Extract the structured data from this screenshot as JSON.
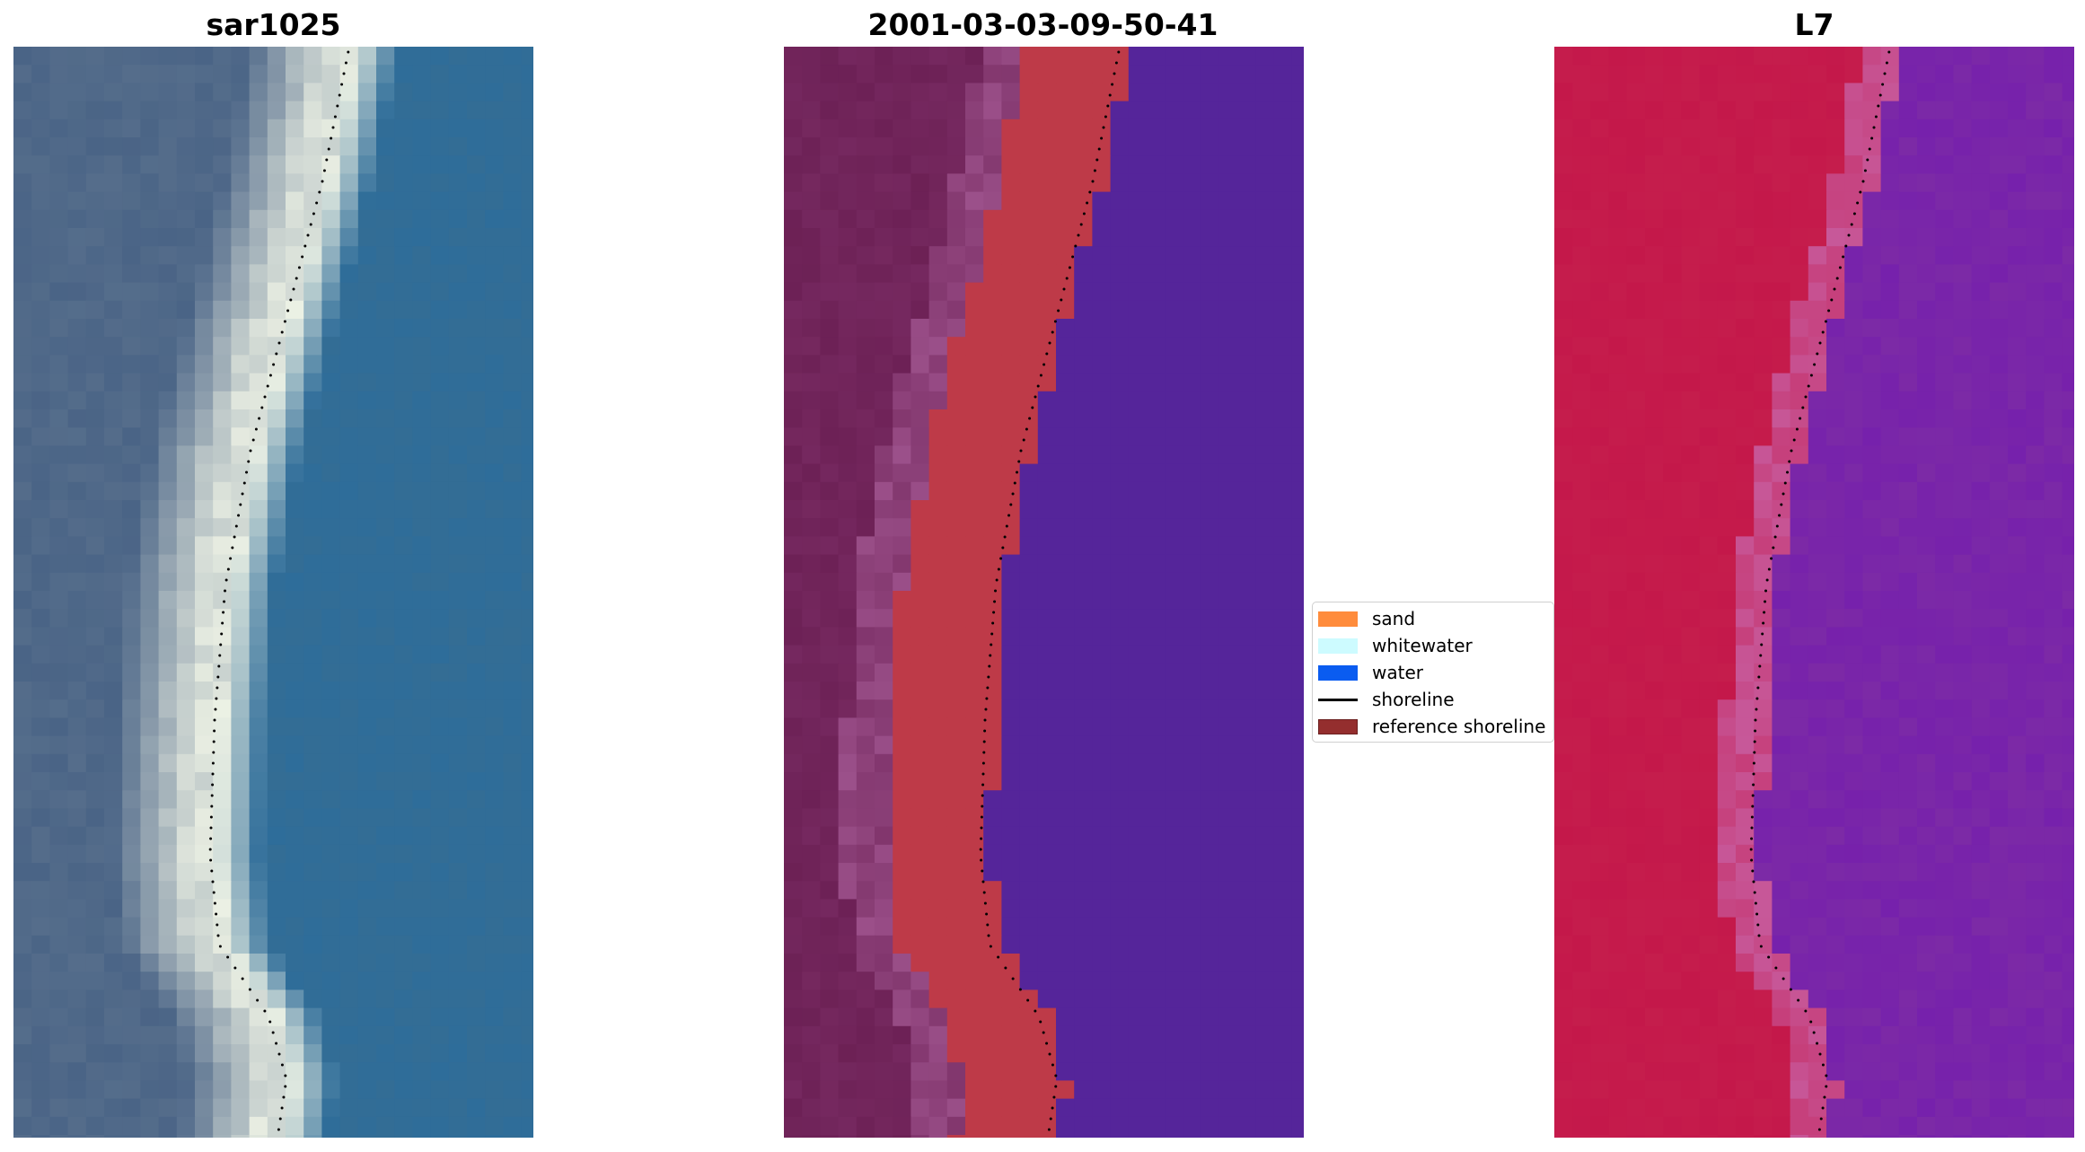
{
  "panels": [
    {
      "title": "sar1025",
      "base": "#2f6d99"
    },
    {
      "title": "2001-03-03-09-50-41",
      "base": "#55259a"
    },
    {
      "title": "L7",
      "base": "#7c2aa6"
    }
  ],
  "legend": {
    "items": [
      {
        "label": "sand",
        "color": "#ff8c3c",
        "kind": "patch"
      },
      {
        "label": "whitewater",
        "color": "#cdfbff",
        "kind": "patch"
      },
      {
        "label": "water",
        "color": "#0a5cf0",
        "kind": "patch"
      },
      {
        "label": "shoreline",
        "color": "#000000",
        "kind": "line"
      },
      {
        "label": "reference shoreline",
        "color": "#942e2e",
        "kind": "patch"
      }
    ]
  },
  "colors": {
    "rgb_land": "#4a6486",
    "rgb_sand": "#f0f4e6",
    "rgb_water": "#2f6d99",
    "class_land": "#6e2257",
    "class_sand": "#be3a48",
    "class_water": "#55259a",
    "fc_land": "#c4174a",
    "fc_water": "#7c2aa6",
    "shoreline": "#000000"
  }
}
